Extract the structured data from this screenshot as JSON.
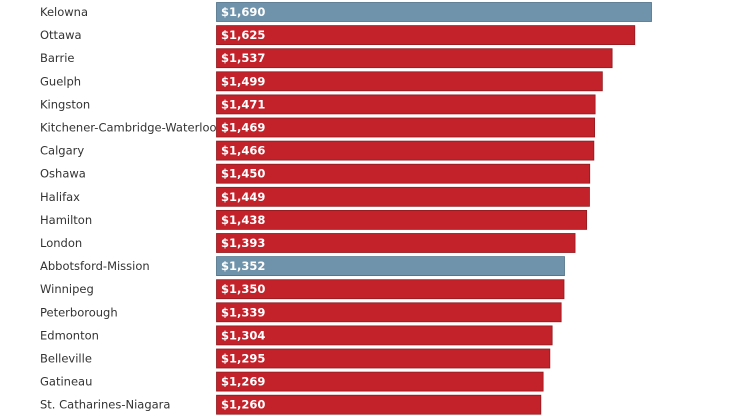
{
  "chart_data": {
    "type": "bar",
    "orientation": "horizontal",
    "categories": [
      "Kelowna",
      "Ottawa",
      "Barrie",
      "Guelph",
      "Kingston",
      "Kitchener-Cambridge-Waterloo",
      "Calgary",
      "Oshawa",
      "Halifax",
      "Hamilton",
      "London",
      "Abbotsford-Mission",
      "Winnipeg",
      "Peterborough",
      "Edmonton",
      "Belleville",
      "Gatineau",
      "St. Catharines-Niagara"
    ],
    "values": [
      1690,
      1625,
      1537,
      1499,
      1471,
      1469,
      1466,
      1450,
      1449,
      1438,
      1393,
      1352,
      1350,
      1339,
      1304,
      1295,
      1269,
      1260
    ],
    "value_labels": [
      "$1,690",
      "$1,625",
      "$1,537",
      "$1,499",
      "$1,471",
      "$1,469",
      "$1,466",
      "$1,450",
      "$1,449",
      "$1,438",
      "$1,393",
      "$1,352",
      "$1,350",
      "$1,339",
      "$1,304",
      "$1,295",
      "$1,269",
      "$1,260"
    ],
    "highlighted": [
      "Kelowna",
      "Abbotsford-Mission"
    ],
    "colors": {
      "default": "#c4222a",
      "default_border": "#8f1a1f",
      "highlight": "#6f93ab",
      "highlight_border": "#4f7088"
    },
    "xlim": [
      0,
      1690
    ],
    "grid": false,
    "legend": "none",
    "axes_visible": false
  }
}
